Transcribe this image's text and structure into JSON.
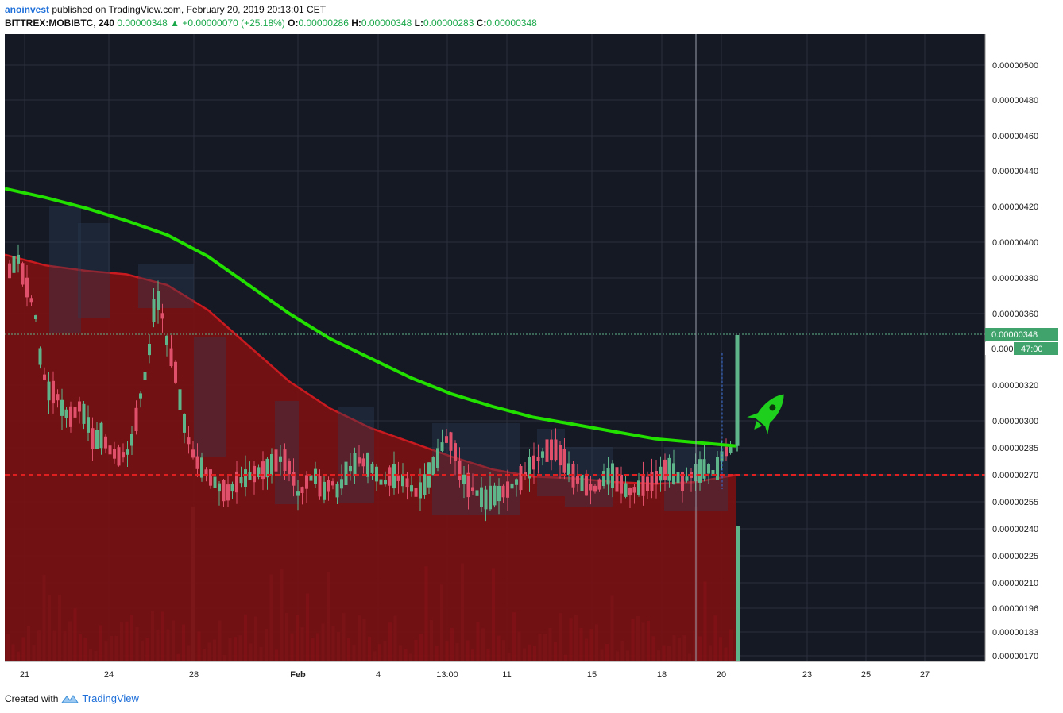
{
  "header": {
    "user": "anoinvest",
    "published": "published on TradingView.com, February 20, 2019 20:13:01 CET",
    "symbol": "BITTREX:MOBIBTC, 240",
    "last": "0.00000348",
    "arrow": "▲",
    "change": "+0.00000070 (+25.18%)",
    "open_label": "O:",
    "open": "0.00000286",
    "high_label": "H:",
    "high": "0.00000348",
    "low_label": "L:",
    "low": "0.00000283",
    "close_label": "C:",
    "close": "0.00000348"
  },
  "footer": {
    "created_with": "Created with",
    "brand": "TradingView"
  },
  "colors": {
    "background": "#151924",
    "grid": "#2a2f3c",
    "ma_green": "#22e000",
    "ma_red_fill": "#7a1013",
    "ma_red_line": "#c81a1f",
    "up": "#5fb58a",
    "down": "#e0506a",
    "price_tag": "#3fa36b"
  },
  "price_tag": {
    "price": "0.00000348",
    "timer_prefix": "0.000",
    "timer": "47:00"
  },
  "rocket_icon": "rocket-icon",
  "chart_data": {
    "type": "candlestick",
    "title": "",
    "price_axis_ticks": [
      "0.00000500",
      "0.00000480",
      "0.00000460",
      "0.00000440",
      "0.00000420",
      "0.00000400",
      "0.00000380",
      "0.00000360",
      "0.00000320",
      "0.00000300",
      "0.00000285",
      "0.00000270",
      "0.00000255",
      "0.00000240",
      "0.00000225",
      "0.00000210",
      "0.00000196",
      "0.00000183",
      "0.00000170"
    ],
    "time_axis_ticks": [
      "21",
      "24",
      "28",
      "Feb",
      "4",
      "13:00",
      "11",
      "15",
      "18",
      "20",
      "23",
      "25",
      "27"
    ],
    "horizontal_line": 2.7e-06,
    "current_price": 3.48e-06,
    "series": [
      {
        "name": "",
        "type": "moving_average",
        "color": "green",
        "points": [
          [
            0,
            4.3
          ],
          [
            4,
            4.25
          ],
          [
            8,
            4.19
          ],
          [
            12,
            4.12
          ],
          [
            16,
            4.04
          ],
          [
            20,
            3.92
          ],
          [
            24,
            3.76
          ],
          [
            28,
            3.6
          ],
          [
            32,
            3.46
          ],
          [
            36,
            3.35
          ],
          [
            40,
            3.24
          ],
          [
            44,
            3.15
          ],
          [
            48,
            3.08
          ],
          [
            52,
            3.02
          ],
          [
            56,
            2.98
          ],
          [
            60,
            2.94
          ],
          [
            64,
            2.9
          ],
          [
            68,
            2.88
          ],
          [
            72,
            2.86
          ]
        ]
      },
      {
        "name": "",
        "type": "moving_average",
        "color": "red",
        "points": [
          [
            0,
            3.93
          ],
          [
            4,
            3.87
          ],
          [
            8,
            3.84
          ],
          [
            12,
            3.82
          ],
          [
            16,
            3.76
          ],
          [
            20,
            3.62
          ],
          [
            24,
            3.42
          ],
          [
            28,
            3.22
          ],
          [
            32,
            3.07
          ],
          [
            36,
            2.96
          ],
          [
            40,
            2.88
          ],
          [
            44,
            2.8
          ],
          [
            48,
            2.73
          ],
          [
            52,
            2.69
          ],
          [
            56,
            2.68
          ],
          [
            60,
            2.66
          ],
          [
            64,
            2.65
          ],
          [
            68,
            2.66
          ],
          [
            72,
            2.7
          ]
        ]
      }
    ]
  }
}
